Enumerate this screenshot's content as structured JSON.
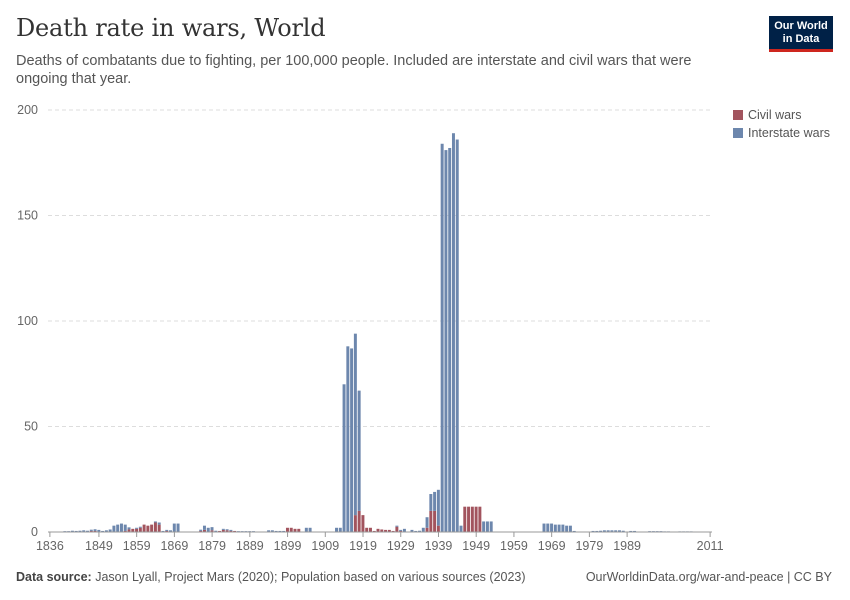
{
  "header": {
    "title": "Death rate in wars, World",
    "subtitle": "Deaths of combatants due to fighting, per 100,000 people. Included are interstate and civil wars that were ongoing that year."
  },
  "logo": {
    "line1": "Our World",
    "line2": "in Data"
  },
  "colors": {
    "civil": "#a2545e",
    "interstate": "#6d87ad",
    "grid": "#dddddd",
    "axis": "#999999"
  },
  "footer": {
    "source_label": "Data source:",
    "source_text": "Jason Lyall, Project Mars (2020); Population based on various sources (2023)",
    "link": "OurWorldinData.org/war-and-peace | CC BY"
  },
  "chart_data": {
    "type": "bar",
    "stacked": true,
    "title": "Death rate in wars, World",
    "ylim": [
      0,
      200
    ],
    "xlim": [
      1836,
      2011
    ],
    "yticks": [
      0,
      50,
      100,
      150,
      200
    ],
    "xticks": [
      1836,
      1849,
      1859,
      1869,
      1879,
      1889,
      1899,
      1909,
      1919,
      1929,
      1939,
      1949,
      1959,
      1969,
      1979,
      1989,
      2011
    ],
    "grid": true,
    "legend_position": "top-right",
    "series": [
      {
        "name": "Civil wars",
        "color": "#a2545e",
        "x": [
          1847,
          1848,
          1856,
          1857,
          1858,
          1859,
          1860,
          1861,
          1862,
          1863,
          1864,
          1865,
          1867,
          1876,
          1877,
          1879,
          1881,
          1882,
          1883,
          1884,
          1885,
          1899,
          1900,
          1901,
          1902,
          1917,
          1918,
          1919,
          1920,
          1921,
          1922,
          1923,
          1924,
          1925,
          1926,
          1927,
          1928,
          1929,
          1936,
          1937,
          1938,
          1939,
          1946,
          1947,
          1948,
          1949,
          1950
        ],
        "values": [
          0.5,
          0.5,
          0.5,
          1.2,
          1.5,
          1.5,
          2,
          3.5,
          3,
          3.5,
          4.5,
          3.5,
          0.5,
          0.5,
          1,
          0.8,
          0.5,
          1,
          0.8,
          0.5,
          0.5,
          2,
          2,
          1.5,
          1.5,
          8,
          10,
          8,
          2,
          2,
          0.5,
          1.5,
          1.2,
          1,
          1,
          0.5,
          2.5,
          0.5,
          2,
          10,
          10,
          3,
          12,
          12,
          12,
          12,
          12
        ]
      },
      {
        "name": "Interstate wars",
        "color": "#6d87ad",
        "x": [
          1840,
          1841,
          1842,
          1843,
          1844,
          1845,
          1846,
          1847,
          1848,
          1849,
          1850,
          1851,
          1852,
          1853,
          1854,
          1855,
          1856,
          1857,
          1859,
          1860,
          1864,
          1865,
          1866,
          1867,
          1868,
          1869,
          1870,
          1876,
          1877,
          1878,
          1879,
          1880,
          1882,
          1883,
          1884,
          1886,
          1887,
          1888,
          1889,
          1890,
          1894,
          1895,
          1896,
          1897,
          1898,
          1904,
          1905,
          1912,
          1913,
          1914,
          1915,
          1916,
          1917,
          1918,
          1928,
          1929,
          1930,
          1932,
          1933,
          1934,
          1935,
          1936,
          1937,
          1938,
          1939,
          1940,
          1941,
          1942,
          1943,
          1944,
          1945,
          1951,
          1952,
          1953,
          1967,
          1968,
          1969,
          1970,
          1971,
          1972,
          1973,
          1974,
          1975,
          1980,
          1981,
          1982,
          1983,
          1984,
          1985,
          1986,
          1987,
          1988,
          1990,
          1991,
          1995,
          1996,
          1997,
          1998,
          1999,
          2000,
          2003,
          2004,
          2005,
          2006
        ],
        "values": [
          0.4,
          0.4,
          0.6,
          0.5,
          0.6,
          0.8,
          0.6,
          0.6,
          0.8,
          1,
          0.5,
          0.8,
          1.2,
          3,
          3.5,
          4,
          3,
          1,
          0.5,
          0.5,
          0.5,
          1,
          0.5,
          0.5,
          0.8,
          4,
          4,
          0.6,
          2,
          2,
          1.5,
          0.6,
          0.5,
          0.5,
          0.5,
          0.4,
          0.4,
          0.4,
          0.4,
          0.4,
          0.8,
          0.8,
          0.5,
          0.5,
          0.5,
          2,
          2,
          2,
          2,
          70,
          88,
          87,
          86,
          57,
          0.5,
          0.5,
          1.5,
          1,
          0.5,
          0.6,
          2,
          5,
          8,
          9,
          17,
          184,
          181,
          182,
          189,
          186,
          3,
          5,
          5,
          5,
          4,
          4,
          4,
          3.5,
          3.5,
          3.5,
          3,
          3,
          0.5,
          0.5,
          0.5,
          0.6,
          0.8,
          0.8,
          0.8,
          0.8,
          0.8,
          0.6,
          0.5,
          0.5,
          0.4,
          0.4,
          0.4,
          0.4,
          0.3,
          0.3,
          0.3,
          0.3,
          0.3,
          0.3
        ]
      }
    ]
  }
}
